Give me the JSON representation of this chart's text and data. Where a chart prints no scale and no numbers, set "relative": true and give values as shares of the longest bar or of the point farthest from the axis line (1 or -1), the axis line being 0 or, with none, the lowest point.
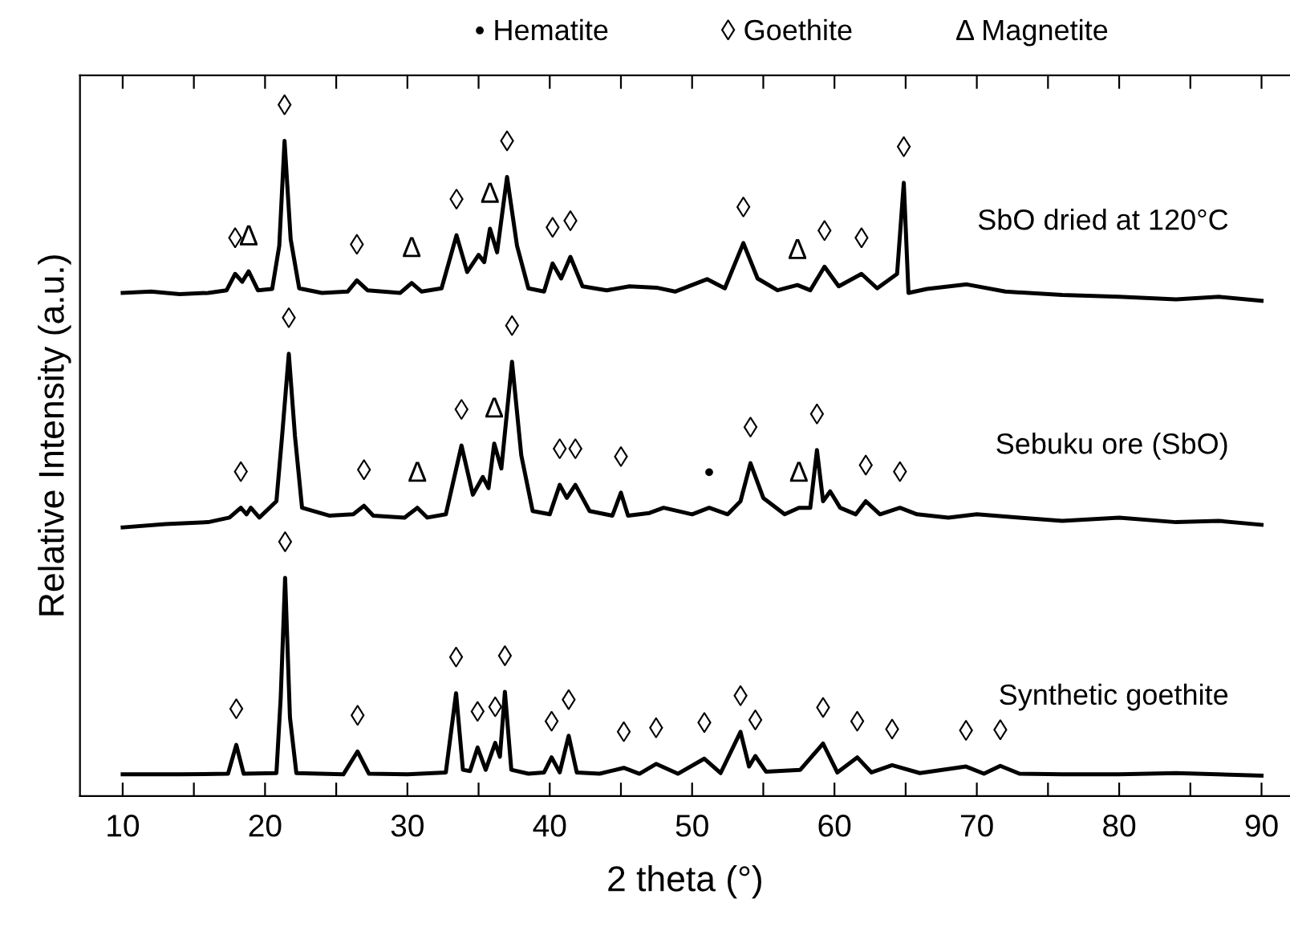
{
  "chart_data": {
    "type": "line",
    "relative": true,
    "xlabel": "2 theta (°)",
    "ylabel": "Relative Intensity (a.u.)",
    "xlim": [
      7,
      92
    ],
    "xticks": [
      10,
      {
        "value": 15,
        "label": null
      },
      20,
      {
        "value": 25,
        "label": null
      },
      30,
      {
        "value": 35,
        "label": null
      },
      40,
      {
        "value": 45,
        "label": null
      },
      50,
      {
        "value": 55,
        "label": null
      },
      60,
      {
        "value": 65,
        "label": null
      },
      70,
      {
        "value": 75,
        "label": null
      },
      80,
      {
        "value": 85,
        "label": null
      },
      90
    ],
    "grid": false,
    "legend": false,
    "marker": "none",
    "line_style": "solid",
    "series": [
      {
        "name": "SbO dried at 120°C",
        "color": "#000000",
        "x": [
          10,
          12,
          14,
          16,
          17.3,
          17.9,
          18.4,
          18.85,
          19.5,
          20.5,
          21.0,
          21.37,
          21.8,
          22.4,
          24,
          25.8,
          26.45,
          27.2,
          29.5,
          30.3,
          31,
          32.4,
          33.45,
          34.2,
          35.0,
          35.4,
          35.8,
          36.3,
          37.0,
          37.7,
          38.5,
          39.6,
          40.2,
          40.8,
          41.45,
          42.3,
          44,
          45.6,
          47.5,
          48.8,
          51.05,
          52.3,
          53.6,
          54.6,
          56,
          57.4,
          58.3,
          59.3,
          60.3,
          61.9,
          63,
          64.4,
          64.87,
          65.2,
          66.5,
          69.3,
          72,
          76,
          80,
          84,
          87,
          90
        ],
        "values": [
          0.768,
          0.77,
          0.766,
          0.768,
          0.772,
          0.797,
          0.785,
          0.801,
          0.772,
          0.774,
          0.84,
          1.0,
          0.85,
          0.775,
          0.768,
          0.77,
          0.787,
          0.772,
          0.768,
          0.783,
          0.77,
          0.775,
          0.856,
          0.8,
          0.826,
          0.815,
          0.866,
          0.83,
          0.945,
          0.84,
          0.775,
          0.77,
          0.813,
          0.79,
          0.823,
          0.778,
          0.772,
          0.778,
          0.776,
          0.77,
          0.789,
          0.775,
          0.844,
          0.79,
          0.772,
          0.78,
          0.772,
          0.808,
          0.778,
          0.797,
          0.775,
          0.797,
          0.936,
          0.768,
          0.774,
          0.781,
          0.77,
          0.765,
          0.762,
          0.758,
          0.762,
          0.756
        ]
      },
      {
        "name": "Sebuku ore (SbO)",
        "color": "#000000",
        "x": [
          10,
          13,
          16,
          17.5,
          18.3,
          18.7,
          19.0,
          19.6,
          20.8,
          21.2,
          21.67,
          22.1,
          22.6,
          24.5,
          26.2,
          26.95,
          27.6,
          29.8,
          30.7,
          31.4,
          32.7,
          33.8,
          34.6,
          35.3,
          35.7,
          36.1,
          36.6,
          37.35,
          38.0,
          38.8,
          40.0,
          40.7,
          41.2,
          41.8,
          42.8,
          44.4,
          45.0,
          45.5,
          47,
          48,
          50,
          51.2,
          52.5,
          53.4,
          54.1,
          55.0,
          56.5,
          57.5,
          58.3,
          58.77,
          59.2,
          59.7,
          60.4,
          61.5,
          62.2,
          63.2,
          64.6,
          65.8,
          68,
          70,
          73,
          76,
          80,
          84,
          87,
          90
        ],
        "values": [
          0.41,
          0.415,
          0.418,
          0.425,
          0.44,
          0.43,
          0.44,
          0.425,
          0.45,
          0.55,
          0.675,
          0.55,
          0.44,
          0.428,
          0.43,
          0.443,
          0.428,
          0.425,
          0.44,
          0.425,
          0.43,
          0.535,
          0.46,
          0.487,
          0.47,
          0.538,
          0.5,
          0.663,
          0.52,
          0.435,
          0.43,
          0.475,
          0.455,
          0.475,
          0.435,
          0.428,
          0.463,
          0.428,
          0.432,
          0.44,
          0.43,
          0.44,
          0.43,
          0.45,
          0.508,
          0.455,
          0.43,
          0.44,
          0.44,
          0.528,
          0.45,
          0.465,
          0.44,
          0.43,
          0.45,
          0.43,
          0.44,
          0.43,
          0.425,
          0.43,
          0.425,
          0.42,
          0.425,
          0.418,
          0.42,
          0.414
        ]
      },
      {
        "name": "Synthetic goethite",
        "color": "#000000",
        "x": [
          10,
          14,
          17.4,
          17.98,
          18.5,
          20.8,
          21.1,
          21.41,
          21.75,
          22.2,
          25.5,
          26.5,
          27.3,
          30,
          32.7,
          33.42,
          33.9,
          34.4,
          34.93,
          35.5,
          36.17,
          36.5,
          36.85,
          37.3,
          38.5,
          39.6,
          40.13,
          40.7,
          41.33,
          41.9,
          43.5,
          45.2,
          46.3,
          47.47,
          49,
          50.86,
          52,
          53.4,
          54.0,
          54.44,
          55.2,
          57.6,
          59.2,
          60.2,
          61.6,
          62.6,
          64.05,
          66,
          69.24,
          70.5,
          71.65,
          73,
          76,
          80,
          84,
          90
        ],
        "values": [
          0.033,
          0.033,
          0.034,
          0.078,
          0.034,
          0.035,
          0.15,
          0.333,
          0.12,
          0.035,
          0.033,
          0.068,
          0.034,
          0.033,
          0.036,
          0.157,
          0.04,
          0.038,
          0.074,
          0.04,
          0.081,
          0.06,
          0.159,
          0.04,
          0.034,
          0.036,
          0.059,
          0.036,
          0.092,
          0.036,
          0.034,
          0.043,
          0.034,
          0.049,
          0.034,
          0.057,
          0.035,
          0.098,
          0.045,
          0.061,
          0.037,
          0.04,
          0.08,
          0.036,
          0.059,
          0.036,
          0.047,
          0.035,
          0.045,
          0.034,
          0.046,
          0.034,
          0.033,
          0.033,
          0.035,
          0.031
        ]
      }
    ],
    "annotations": [
      "• Hematite",
      "◊ Goethite",
      "Δ Magnetite",
      {
        "text": "◊",
        "x": 17.9,
        "y": 0.797
      },
      {
        "text": "Δ",
        "x": 18.85,
        "y": 0.801
      },
      {
        "text": "◊",
        "x": 21.37,
        "y": 1.0
      },
      {
        "text": "◊",
        "x": 26.45,
        "y": 0.787
      },
      {
        "text": "Δ",
        "x": 30.3,
        "y": 0.783
      },
      {
        "text": "◊",
        "x": 33.45,
        "y": 0.856
      },
      {
        "text": "Δ",
        "x": 35.8,
        "y": 0.866
      },
      {
        "text": "◊",
        "x": 37.0,
        "y": 0.945
      },
      {
        "text": "◊",
        "x": 40.2,
        "y": 0.813
      },
      {
        "text": "◊",
        "x": 41.45,
        "y": 0.823
      },
      {
        "text": "◊",
        "x": 53.6,
        "y": 0.844
      },
      {
        "text": "Δ",
        "x": 57.4,
        "y": 0.78
      },
      {
        "text": "◊",
        "x": 59.3,
        "y": 0.808
      },
      {
        "text": "◊",
        "x": 61.9,
        "y": 0.797
      },
      {
        "text": "◊",
        "x": 64.87,
        "y": 0.936
      },
      {
        "text": "◊",
        "x": 18.3,
        "y": 0.44
      },
      {
        "text": "◊",
        "x": 21.67,
        "y": 0.675
      },
      {
        "text": "◊",
        "x": 26.95,
        "y": 0.443
      },
      {
        "text": "Δ",
        "x": 30.7,
        "y": 0.44
      },
      {
        "text": "◊",
        "x": 33.8,
        "y": 0.535
      },
      {
        "text": "Δ",
        "x": 36.1,
        "y": 0.538
      },
      {
        "text": "◊",
        "x": 37.35,
        "y": 0.663
      },
      {
        "text": "◊",
        "x": 40.7,
        "y": 0.475
      },
      {
        "text": "◊",
        "x": 41.8,
        "y": 0.475
      },
      {
        "text": "◊",
        "x": 45.0,
        "y": 0.463
      },
      {
        "text": "•",
        "x": 51.2,
        "y": 0.44
      },
      {
        "text": "◊",
        "x": 54.1,
        "y": 0.508
      },
      {
        "text": "Δ",
        "x": 57.5,
        "y": 0.44
      },
      {
        "text": "◊",
        "x": 58.77,
        "y": 0.528
      },
      {
        "text": "◊",
        "x": 62.2,
        "y": 0.45
      },
      {
        "text": "◊",
        "x": 64.6,
        "y": 0.44
      },
      {
        "text": "◊",
        "x": 17.98,
        "y": 0.078
      },
      {
        "text": "◊",
        "x": 21.41,
        "y": 0.333
      },
      {
        "text": "◊",
        "x": 26.5,
        "y": 0.068
      },
      {
        "text": "◊",
        "x": 33.42,
        "y": 0.157
      },
      {
        "text": "◊",
        "x": 34.93,
        "y": 0.074
      },
      {
        "text": "◊",
        "x": 36.17,
        "y": 0.081
      },
      {
        "text": "◊",
        "x": 36.85,
        "y": 0.159
      },
      {
        "text": "◊",
        "x": 40.13,
        "y": 0.059
      },
      {
        "text": "◊",
        "x": 41.33,
        "y": 0.092
      },
      {
        "text": "◊",
        "x": 45.2,
        "y": 0.043
      },
      {
        "text": "◊",
        "x": 47.47,
        "y": 0.049
      },
      {
        "text": "◊",
        "x": 50.86,
        "y": 0.057
      },
      {
        "text": "◊",
        "x": 53.4,
        "y": 0.098
      },
      {
        "text": "◊",
        "x": 54.44,
        "y": 0.061
      },
      {
        "text": "◊",
        "x": 59.2,
        "y": 0.08
      },
      {
        "text": "◊",
        "x": 61.6,
        "y": 0.059
      },
      {
        "text": "◊",
        "x": 64.05,
        "y": 0.047
      },
      {
        "text": "◊",
        "x": 69.24,
        "y": 0.045
      },
      {
        "text": "◊",
        "x": 71.65,
        "y": 0.046
      }
    ]
  }
}
